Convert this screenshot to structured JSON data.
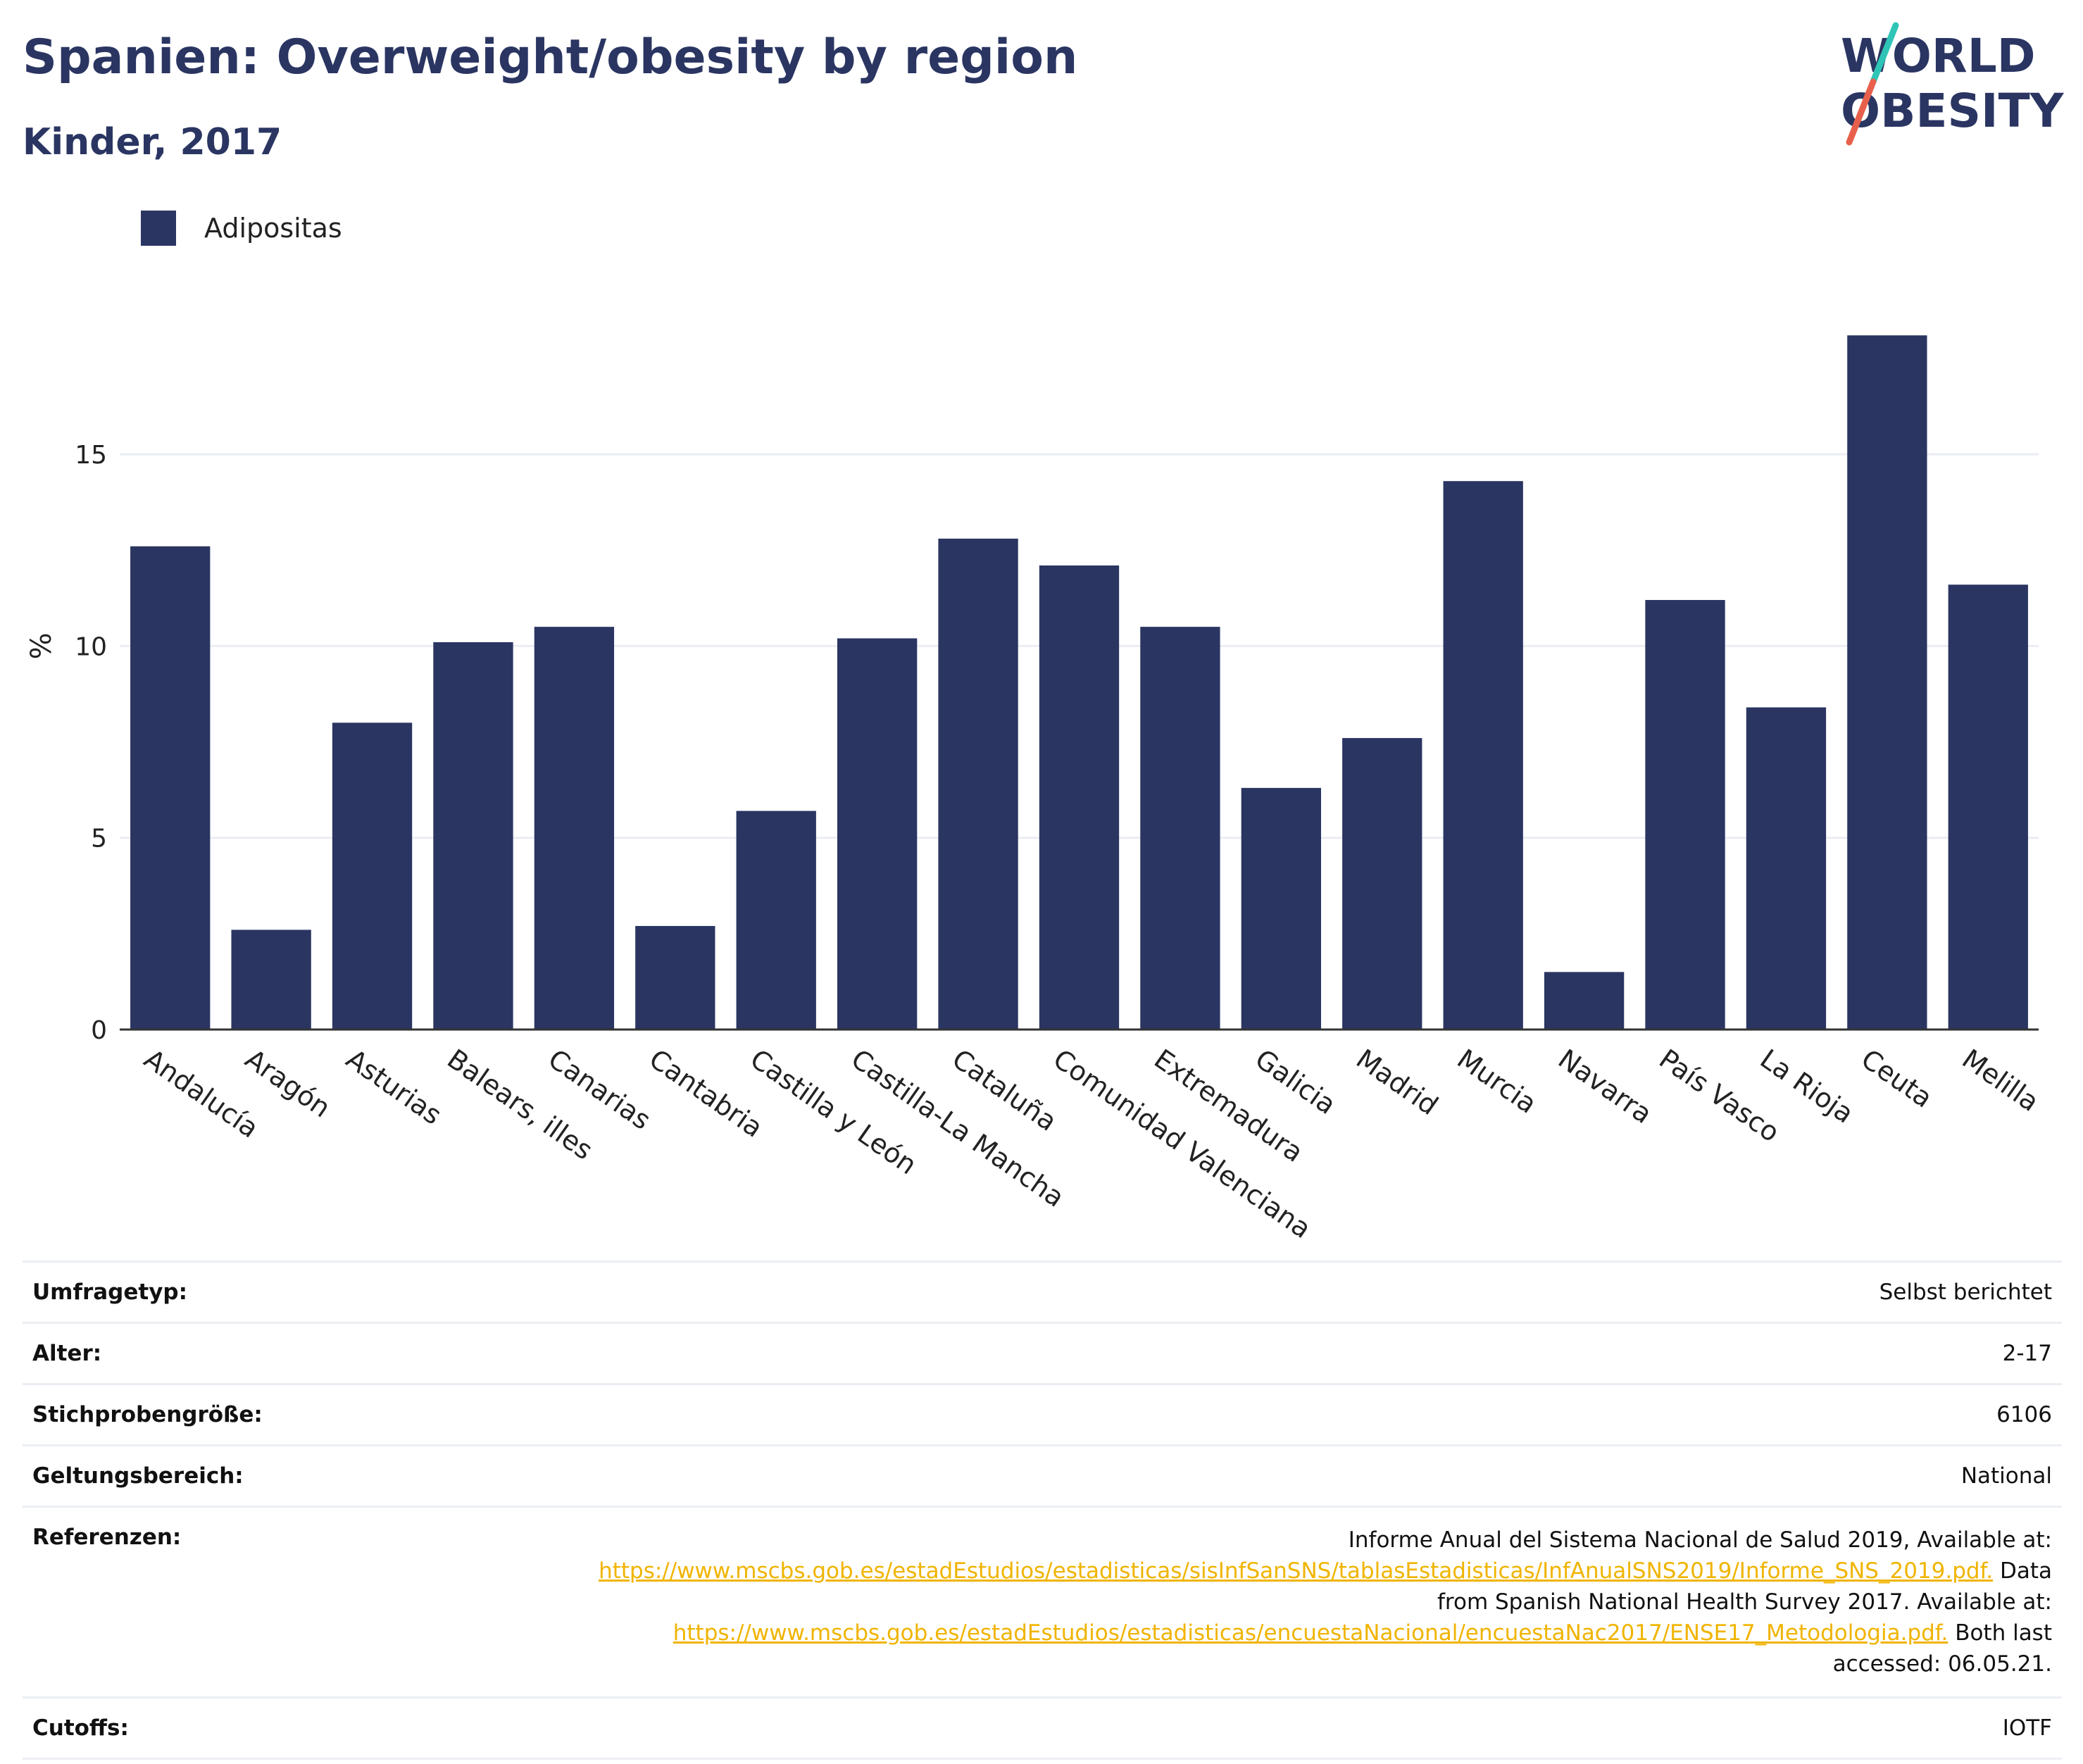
{
  "header": {
    "title": "Spanien: Overweight/obesity by region",
    "subtitle": "Kinder, 2017"
  },
  "logo": {
    "line1": "WORLD",
    "line2": "OBESITY"
  },
  "colors": {
    "bar": "#2a3562",
    "accent_teal": "#2ec4b6",
    "accent_red": "#e8604c",
    "link": "#f0b400"
  },
  "chart_data": {
    "type": "bar",
    "title": "Spanien: Overweight/obesity by region",
    "subtitle": "Kinder, 2017",
    "ylabel": "%",
    "ylim": [
      0,
      19.5
    ],
    "yticks": [
      0,
      5,
      10,
      15
    ],
    "grid": true,
    "legend_position": "top-left",
    "categories": [
      "Andalucía",
      "Aragón",
      "Asturias",
      "Balears, illes",
      "Canarias",
      "Cantabria",
      "Castilla y León",
      "Castilla-La Mancha",
      "Cataluña",
      "Comunidad Valenciana",
      "Extremadura",
      "Galicia",
      "Madrid",
      "Murcia",
      "Navarra",
      "País Vasco",
      "La Rioja",
      "Ceuta",
      "Melilla"
    ],
    "series": [
      {
        "name": "Adipositas",
        "values": [
          12.6,
          2.6,
          8.0,
          10.1,
          10.5,
          2.7,
          5.7,
          10.2,
          12.8,
          12.1,
          10.5,
          6.3,
          7.6,
          14.3,
          1.5,
          11.2,
          8.4,
          18.1,
          11.6
        ]
      }
    ]
  },
  "meta": {
    "survey_type_label": "Umfragetyp:",
    "survey_type_value": "Selbst berichtet",
    "age_label": "Alter:",
    "age_value": "2-17",
    "sample_label": "Stichprobengröße:",
    "sample_value": "6106",
    "scope_label": "Geltungsbereich:",
    "scope_value": "National",
    "references_label": "Referenzen:",
    "ref_text1": "Informe Anual del Sistema Nacional de Salud 2019, Available at:",
    "ref_link1": "https://www.mscbs.gob.es/estadEstudios/estadisticas/sisInfSanSNS/tablasEstadisticas/InfAnualSNS2019/Informe_SNS_2019.pdf.",
    "ref_text2": "Data from Spanish National Health Survey 2017. Available at:",
    "ref_link2": "https://www.mscbs.gob.es/estadEstudios/estadisticas/encuestaNacional/encuestaNac2017/ENSE17_Metodologia.pdf.",
    "ref_text3": "Both last accessed: 06.05.21.",
    "cutoffs_label": "Cutoffs:",
    "cutoffs_value": "IOTF"
  }
}
